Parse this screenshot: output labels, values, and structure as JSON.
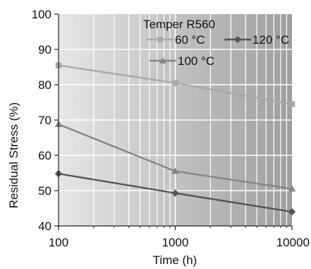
{
  "chart_data": {
    "type": "line",
    "xlabel": "Time (h)",
    "ylabel": "Residual Stress (%)",
    "x_scale": "log",
    "xlim": [
      100,
      10000
    ],
    "ylim": [
      40,
      100
    ],
    "x_ticks": [
      100,
      1000,
      10000
    ],
    "x_tick_labels": [
      "100",
      "1000",
      "10000"
    ],
    "y_ticks": [
      40,
      50,
      60,
      70,
      80,
      90,
      100
    ],
    "y_tick_labels": [
      "40",
      "50",
      "60",
      "70",
      "80",
      "90",
      "100"
    ],
    "grid": true,
    "legend": {
      "title": "Temper R560",
      "placement": "top-right"
    },
    "x": [
      100,
      1000,
      10000
    ],
    "series": [
      {
        "name": "60 °C",
        "values": [
          85.5,
          80.5,
          74.5
        ],
        "marker": "square",
        "color": "#a8a8a8"
      },
      {
        "name": "120 °C",
        "values": [
          54.8,
          49.3,
          44.0
        ],
        "marker": "diamond",
        "color": "#555555"
      },
      {
        "name": "100 °C",
        "values": [
          68.8,
          55.5,
          50.5
        ],
        "marker": "triangle",
        "color": "#858585"
      }
    ]
  }
}
